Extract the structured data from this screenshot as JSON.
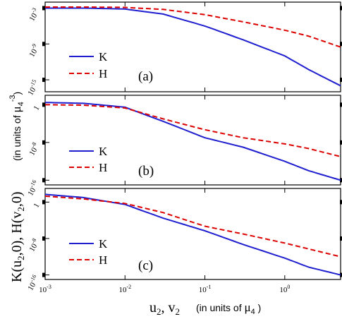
{
  "chart_data": [
    {
      "panel": "(a)",
      "type": "line",
      "x_scale": "log",
      "y_scale": "log",
      "xlim": [
        0.001,
        5
      ],
      "ylim": [
        1e-17,
        0.01
      ],
      "y_ticks": [
        {
          "v": 0.001,
          "label": "10-3"
        },
        {
          "v": 1e-09,
          "label": "10-9"
        },
        {
          "v": 1e-15,
          "label": "10-15"
        }
      ],
      "legend_location": "lower-left",
      "series": [
        {
          "name": "K",
          "color": "#1f1fd0",
          "dash": "solid",
          "x": [
            0.001,
            0.003,
            0.01,
            0.03,
            0.1,
            0.3,
            1,
            2,
            5
          ],
          "y": [
            0.001,
            0.001,
            0.0007,
            0.0001,
            1e-06,
            5e-09,
            1e-11,
            5e-14,
            1e-16
          ]
        },
        {
          "name": "H",
          "color": "#dd0000",
          "dash": "dashed",
          "x": [
            0.001,
            0.003,
            0.01,
            0.03,
            0.1,
            0.3,
            1,
            2,
            5
          ],
          "y": [
            0.0015,
            0.0015,
            0.0013,
            0.0006,
            8e-05,
            5e-06,
            2e-07,
            2e-08,
            3e-10
          ]
        }
      ],
      "legend": [
        "K",
        "H"
      ]
    },
    {
      "panel": "(b)",
      "type": "line",
      "x_scale": "log",
      "y_scale": "log",
      "xlim": [
        0.001,
        5
      ],
      "ylim": [
        1e-17,
        100
      ],
      "y_ticks": [
        {
          "v": 1,
          "label": "1"
        },
        {
          "v": 1e-08,
          "label": "10-8"
        },
        {
          "v": 1e-16,
          "label": "10-16"
        }
      ],
      "legend_location": "lower-left",
      "series": [
        {
          "name": "K",
          "color": "#1f1fd0",
          "dash": "solid",
          "x": [
            0.001,
            0.003,
            0.01,
            0.03,
            0.1,
            0.3,
            1,
            2,
            5
          ],
          "y": [
            3,
            2,
            0.3,
            0.0003,
            1e-07,
            1e-09,
            1e-12,
            1e-14,
            1e-16
          ]
        },
        {
          "name": "H",
          "color": "#dd0000",
          "dash": "dashed",
          "x": [
            0.001,
            0.003,
            0.01,
            0.03,
            0.1,
            0.3,
            1,
            2,
            5
          ],
          "y": [
            1,
            0.8,
            0.2,
            0.001,
            5e-06,
            1e-07,
            5e-09,
            5e-10,
            1e-11
          ]
        }
      ],
      "legend": [
        "K",
        "H"
      ]
    },
    {
      "panel": "(c)",
      "type": "line",
      "x_scale": "log",
      "y_scale": "log",
      "xlim": [
        0.001,
        5
      ],
      "ylim": [
        1e-17,
        1000
      ],
      "y_ticks": [
        {
          "v": 1,
          "label": "1"
        },
        {
          "v": 1e-08,
          "label": "10-8"
        },
        {
          "v": 1e-16,
          "label": "10-16"
        }
      ],
      "legend_location": "lower-left",
      "series": [
        {
          "name": "K",
          "color": "#1f1fd0",
          "dash": "solid",
          "x": [
            0.001,
            0.003,
            0.01,
            0.03,
            0.1,
            0.3,
            1,
            2,
            5
          ],
          "y": [
            50,
            10,
            0.3,
            0.0003,
            5e-07,
            5e-10,
            5e-13,
            5e-15,
            1e-16
          ]
        },
        {
          "name": "H",
          "color": "#dd0000",
          "dash": "dashed",
          "x": [
            0.001,
            0.003,
            0.01,
            0.03,
            0.1,
            0.3,
            1,
            2,
            5
          ],
          "y": [
            20,
            5,
            0.5,
            0.005,
            5e-06,
            1e-07,
            1e-09,
            5e-11,
            1e-12
          ]
        }
      ],
      "legend": [
        "K",
        "H"
      ]
    }
  ],
  "x_axis": {
    "tick_labels": [
      {
        "v": 0.001,
        "label": "10-3"
      },
      {
        "v": 0.01,
        "label": "10-2"
      },
      {
        "v": 0.1,
        "label": "10-1"
      },
      {
        "v": 1,
        "label": "100"
      }
    ],
    "label_main": "u2, v2",
    "label_unit": "(in units of μ4 )"
  },
  "y_axis": {
    "label_main": "K(u2,0), H(v2,0)",
    "label_unit": "(in units of μ4-3)"
  }
}
